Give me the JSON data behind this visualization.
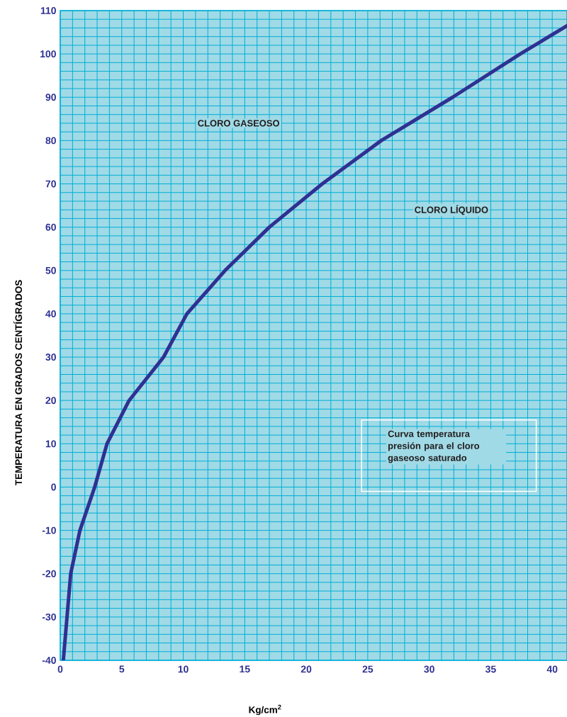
{
  "chart_data": {
    "type": "line",
    "xlabel": "Kg/cm$^{2}$",
    "ylabel": "TEMPERATURA EN GRADOS CENTÍGRADOS",
    "annotations": [
      "CLORO GASEOSO",
      "CLORO LÍQUIDO",
      "Curva temperatura presión para el cloro gaseoso saturado"
    ],
    "x": [
      0.25,
      0.55,
      0.85,
      1.6,
      2.8,
      3.8,
      5.6,
      8.4,
      10.3,
      13.4,
      17.0,
      21.3,
      26.1,
      31.9,
      37.4,
      41.2
    ],
    "series": [
      {
        "color": "#2e3192",
        "values": [
          -40,
          -30,
          -20,
          -10,
          0,
          10,
          20,
          30,
          40,
          50,
          60,
          70,
          80,
          90,
          100,
          106.5
        ]
      }
    ],
    "xlim": [
      0,
      41.2
    ],
    "ylim": [
      -40,
      110
    ],
    "xticks": [
      0,
      5,
      10,
      15,
      20,
      25,
      30,
      35,
      40
    ],
    "yticks": [
      -40,
      -30,
      -20,
      -10,
      0,
      10,
      20,
      30,
      40,
      50,
      60,
      70,
      80,
      90,
      100,
      110
    ],
    "grid": true,
    "marker": "none",
    "line_style": "solid"
  }
}
